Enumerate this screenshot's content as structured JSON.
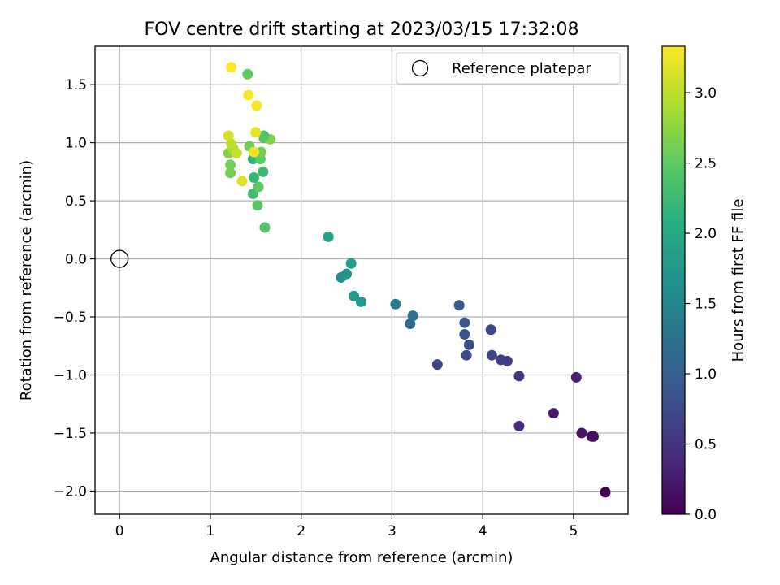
{
  "chart_data": {
    "type": "scatter",
    "title": "FOV centre drift starting at 2023/03/15 17:32:08",
    "xlabel": "Angular distance from reference (arcmin)",
    "ylabel": "Rotation from reference (arcmin)",
    "colorbar_label": "Hours from first FF file",
    "colormap": "viridis",
    "xlim": [
      -0.27,
      5.6
    ],
    "ylim": [
      -2.2,
      1.83
    ],
    "clim": [
      0.0,
      3.33
    ],
    "x_ticks": [
      0,
      1,
      2,
      3,
      4,
      5
    ],
    "x_tick_labels": [
      "0",
      "1",
      "2",
      "3",
      "4",
      "5"
    ],
    "y_ticks": [
      -2.0,
      -1.5,
      -1.0,
      -0.5,
      0.0,
      0.5,
      1.0,
      1.5
    ],
    "y_tick_labels": [
      "−2.0",
      "−1.5",
      "−1.0",
      "−0.5",
      "0.0",
      "0.5",
      "1.0",
      "1.5"
    ],
    "colorbar_ticks": [
      0.0,
      0.5,
      1.0,
      1.5,
      2.0,
      2.5,
      3.0
    ],
    "colorbar_tick_labels": [
      "0.0",
      "0.5",
      "1.0",
      "1.5",
      "2.0",
      "2.5",
      "3.0"
    ],
    "grid": true,
    "legend": {
      "position": "upper-right",
      "entries": [
        "Reference platepar"
      ]
    },
    "reference_point": {
      "name": "Reference platepar",
      "x": 0.0,
      "y": 0.0,
      "marker": "open-circle"
    },
    "series": [
      {
        "points": [
          {
            "x": 5.35,
            "y": -2.01,
            "hours": 0.02
          },
          {
            "x": 5.2,
            "y": -1.53,
            "hours": 0.1
          },
          {
            "x": 5.22,
            "y": -1.53,
            "hours": 0.12
          },
          {
            "x": 5.09,
            "y": -1.5,
            "hours": 0.18
          },
          {
            "x": 4.78,
            "y": -1.33,
            "hours": 0.25
          },
          {
            "x": 5.03,
            "y": -1.02,
            "hours": 0.3
          },
          {
            "x": 4.4,
            "y": -1.44,
            "hours": 0.42
          },
          {
            "x": 4.4,
            "y": -1.01,
            "hours": 0.5
          },
          {
            "x": 4.27,
            "y": -0.88,
            "hours": 0.58
          },
          {
            "x": 4.2,
            "y": -0.87,
            "hours": 0.62
          },
          {
            "x": 4.1,
            "y": -0.83,
            "hours": 0.68
          },
          {
            "x": 4.09,
            "y": -0.61,
            "hours": 0.72
          },
          {
            "x": 3.5,
            "y": -0.91,
            "hours": 0.7
          },
          {
            "x": 3.82,
            "y": -0.83,
            "hours": 0.75
          },
          {
            "x": 3.85,
            "y": -0.74,
            "hours": 0.8
          },
          {
            "x": 3.8,
            "y": -0.65,
            "hours": 0.85
          },
          {
            "x": 3.8,
            "y": -0.55,
            "hours": 0.9
          },
          {
            "x": 3.74,
            "y": -0.4,
            "hours": 0.95
          },
          {
            "x": 3.2,
            "y": -0.56,
            "hours": 1.15
          },
          {
            "x": 3.23,
            "y": -0.49,
            "hours": 1.25
          },
          {
            "x": 3.04,
            "y": -0.39,
            "hours": 1.35
          },
          {
            "x": 2.66,
            "y": -0.37,
            "hours": 1.75
          },
          {
            "x": 2.58,
            "y": -0.32,
            "hours": 1.8
          },
          {
            "x": 2.44,
            "y": -0.16,
            "hours": 1.62
          },
          {
            "x": 2.5,
            "y": -0.13,
            "hours": 1.7
          },
          {
            "x": 2.55,
            "y": -0.04,
            "hours": 1.85
          },
          {
            "x": 2.3,
            "y": 0.19,
            "hours": 1.9
          },
          {
            "x": 1.6,
            "y": 0.27,
            "hours": 2.4
          },
          {
            "x": 1.52,
            "y": 0.46,
            "hours": 2.45
          },
          {
            "x": 1.47,
            "y": 0.56,
            "hours": 2.3
          },
          {
            "x": 1.53,
            "y": 0.62,
            "hours": 2.5
          },
          {
            "x": 1.48,
            "y": 0.7,
            "hours": 2.2
          },
          {
            "x": 1.58,
            "y": 0.75,
            "hours": 2.25
          },
          {
            "x": 1.47,
            "y": 0.86,
            "hours": 2.15
          },
          {
            "x": 1.55,
            "y": 0.86,
            "hours": 2.5
          },
          {
            "x": 1.56,
            "y": 0.92,
            "hours": 2.6
          },
          {
            "x": 1.43,
            "y": 0.97,
            "hours": 2.6
          },
          {
            "x": 1.59,
            "y": 1.04,
            "hours": 2.45
          },
          {
            "x": 1.66,
            "y": 1.03,
            "hours": 2.7
          },
          {
            "x": 1.59,
            "y": 1.06,
            "hours": 2.4
          },
          {
            "x": 1.41,
            "y": 1.59,
            "hours": 2.5
          },
          {
            "x": 1.22,
            "y": 0.74,
            "hours": 2.6
          },
          {
            "x": 1.22,
            "y": 0.81,
            "hours": 2.6
          },
          {
            "x": 1.2,
            "y": 0.91,
            "hours": 2.7
          },
          {
            "x": 1.25,
            "y": 0.95,
            "hours": 2.9
          },
          {
            "x": 1.29,
            "y": 0.91,
            "hours": 3.05
          },
          {
            "x": 1.23,
            "y": 0.99,
            "hours": 3.0
          },
          {
            "x": 1.2,
            "y": 1.06,
            "hours": 3.1
          },
          {
            "x": 1.35,
            "y": 0.67,
            "hours": 3.15
          },
          {
            "x": 1.48,
            "y": 0.92,
            "hours": 3.25
          },
          {
            "x": 1.5,
            "y": 1.09,
            "hours": 3.2
          },
          {
            "x": 1.42,
            "y": 1.41,
            "hours": 3.3
          },
          {
            "x": 1.51,
            "y": 1.32,
            "hours": 3.3
          },
          {
            "x": 1.23,
            "y": 1.65,
            "hours": 3.33
          }
        ]
      }
    ]
  }
}
